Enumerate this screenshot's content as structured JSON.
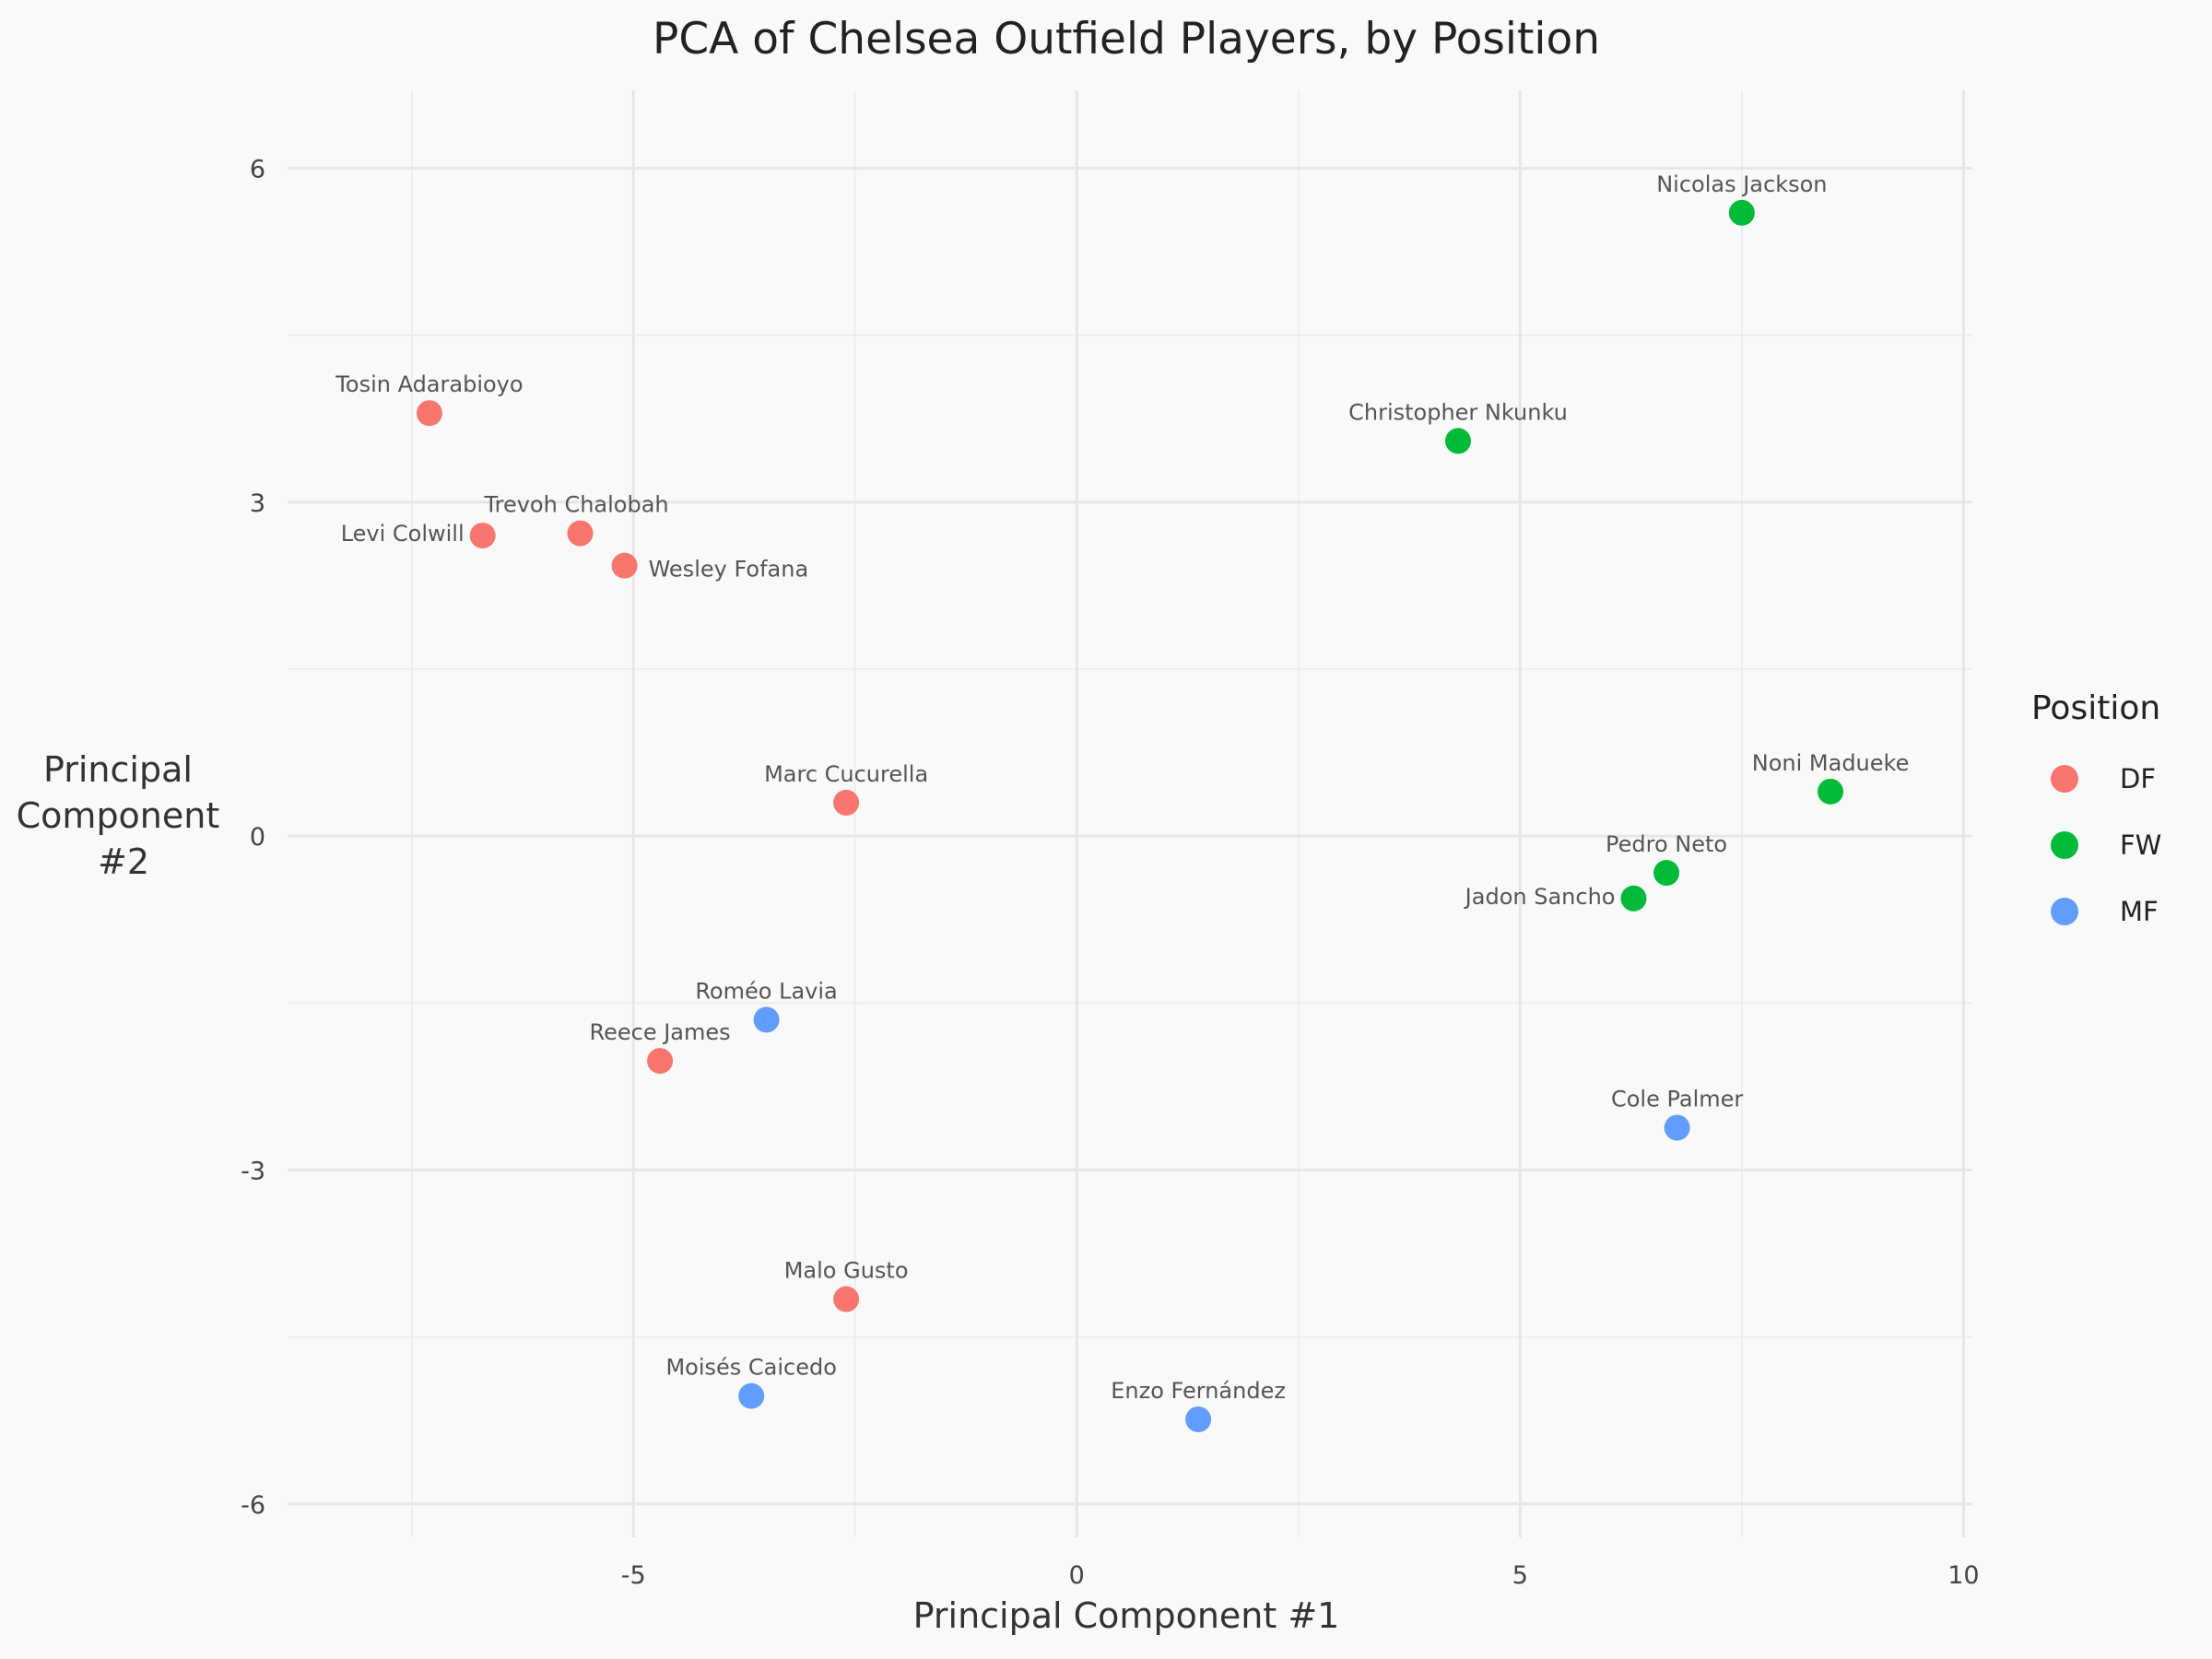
{
  "chart_data": {
    "type": "scatter",
    "title": "PCA of Chelsea Outfield Players, by Position",
    "xlabel": "Principal Component #1",
    "ylabel": [
      "Principal",
      "Component",
      "#2"
    ],
    "xlim": [
      -8.9,
      10.1
    ],
    "ylim": [
      -6.3,
      6.7
    ],
    "xticks": [
      -5,
      0,
      5,
      10
    ],
    "yticks": [
      -6,
      -3,
      0,
      3,
      6
    ],
    "xtick_labels": [
      "-5",
      "0",
      "5",
      "10"
    ],
    "ytick_labels": [
      "-6",
      "-3",
      "0",
      "3",
      "6"
    ],
    "grid": true,
    "legend": {
      "title": "Position",
      "placement": "right",
      "entries": [
        {
          "label": "DF",
          "color": "#F8766D"
        },
        {
          "label": "FW",
          "color": "#00BA38"
        },
        {
          "label": "MF",
          "color": "#619CFF"
        }
      ]
    },
    "points": [
      {
        "name": "Nicolas Jackson",
        "position": "FW",
        "x": 7.5,
        "y": 5.6,
        "label_anchor": "middle",
        "label_side": "above"
      },
      {
        "name": "Tosin Adarabioyo",
        "position": "DF",
        "x": -7.3,
        "y": 3.8,
        "label_anchor": "middle",
        "label_side": "above"
      },
      {
        "name": "Christopher Nkunku",
        "position": "FW",
        "x": 4.3,
        "y": 3.55,
        "label_anchor": "middle",
        "label_side": "above"
      },
      {
        "name": "Trevoh Chalobah",
        "position": "DF",
        "x": -5.6,
        "y": 2.72,
        "label_anchor": "start",
        "label_side": "above"
      },
      {
        "name": "Levi Colwill",
        "position": "DF",
        "x": -6.7,
        "y": 2.7,
        "label_anchor": "end",
        "label_side": "left"
      },
      {
        "name": "Wesley Fofana",
        "position": "DF",
        "x": -5.1,
        "y": 2.43,
        "label_anchor": "start",
        "label_side": "right"
      },
      {
        "name": "Marc Cucurella",
        "position": "DF",
        "x": -2.6,
        "y": 0.3,
        "label_anchor": "middle",
        "label_side": "above"
      },
      {
        "name": "Noni Madueke",
        "position": "FW",
        "x": 8.5,
        "y": 0.4,
        "label_anchor": "middle",
        "label_side": "above"
      },
      {
        "name": "Pedro Neto",
        "position": "FW",
        "x": 6.65,
        "y": -0.33,
        "label_anchor": "middle",
        "label_side": "above"
      },
      {
        "name": "Jadon Sancho",
        "position": "FW",
        "x": 6.28,
        "y": -0.56,
        "label_anchor": "end",
        "label_side": "left"
      },
      {
        "name": "Roméo Lavia",
        "position": "MF",
        "x": -3.5,
        "y": -1.65,
        "label_anchor": "middle",
        "label_side": "above"
      },
      {
        "name": "Reece James",
        "position": "DF",
        "x": -4.7,
        "y": -2.02,
        "label_anchor": "middle",
        "label_side": "above"
      },
      {
        "name": "Cole Palmer",
        "position": "MF",
        "x": 6.77,
        "y": -2.62,
        "label_anchor": "middle",
        "label_side": "above"
      },
      {
        "name": "Malo Gusto",
        "position": "DF",
        "x": -2.6,
        "y": -4.16,
        "label_anchor": "middle",
        "label_side": "above"
      },
      {
        "name": "Moisés Caicedo",
        "position": "MF",
        "x": -3.67,
        "y": -5.03,
        "label_anchor": "middle",
        "label_side": "above"
      },
      {
        "name": "Enzo Fernández",
        "position": "MF",
        "x": 1.37,
        "y": -5.24,
        "label_anchor": "middle",
        "label_side": "above"
      }
    ]
  }
}
